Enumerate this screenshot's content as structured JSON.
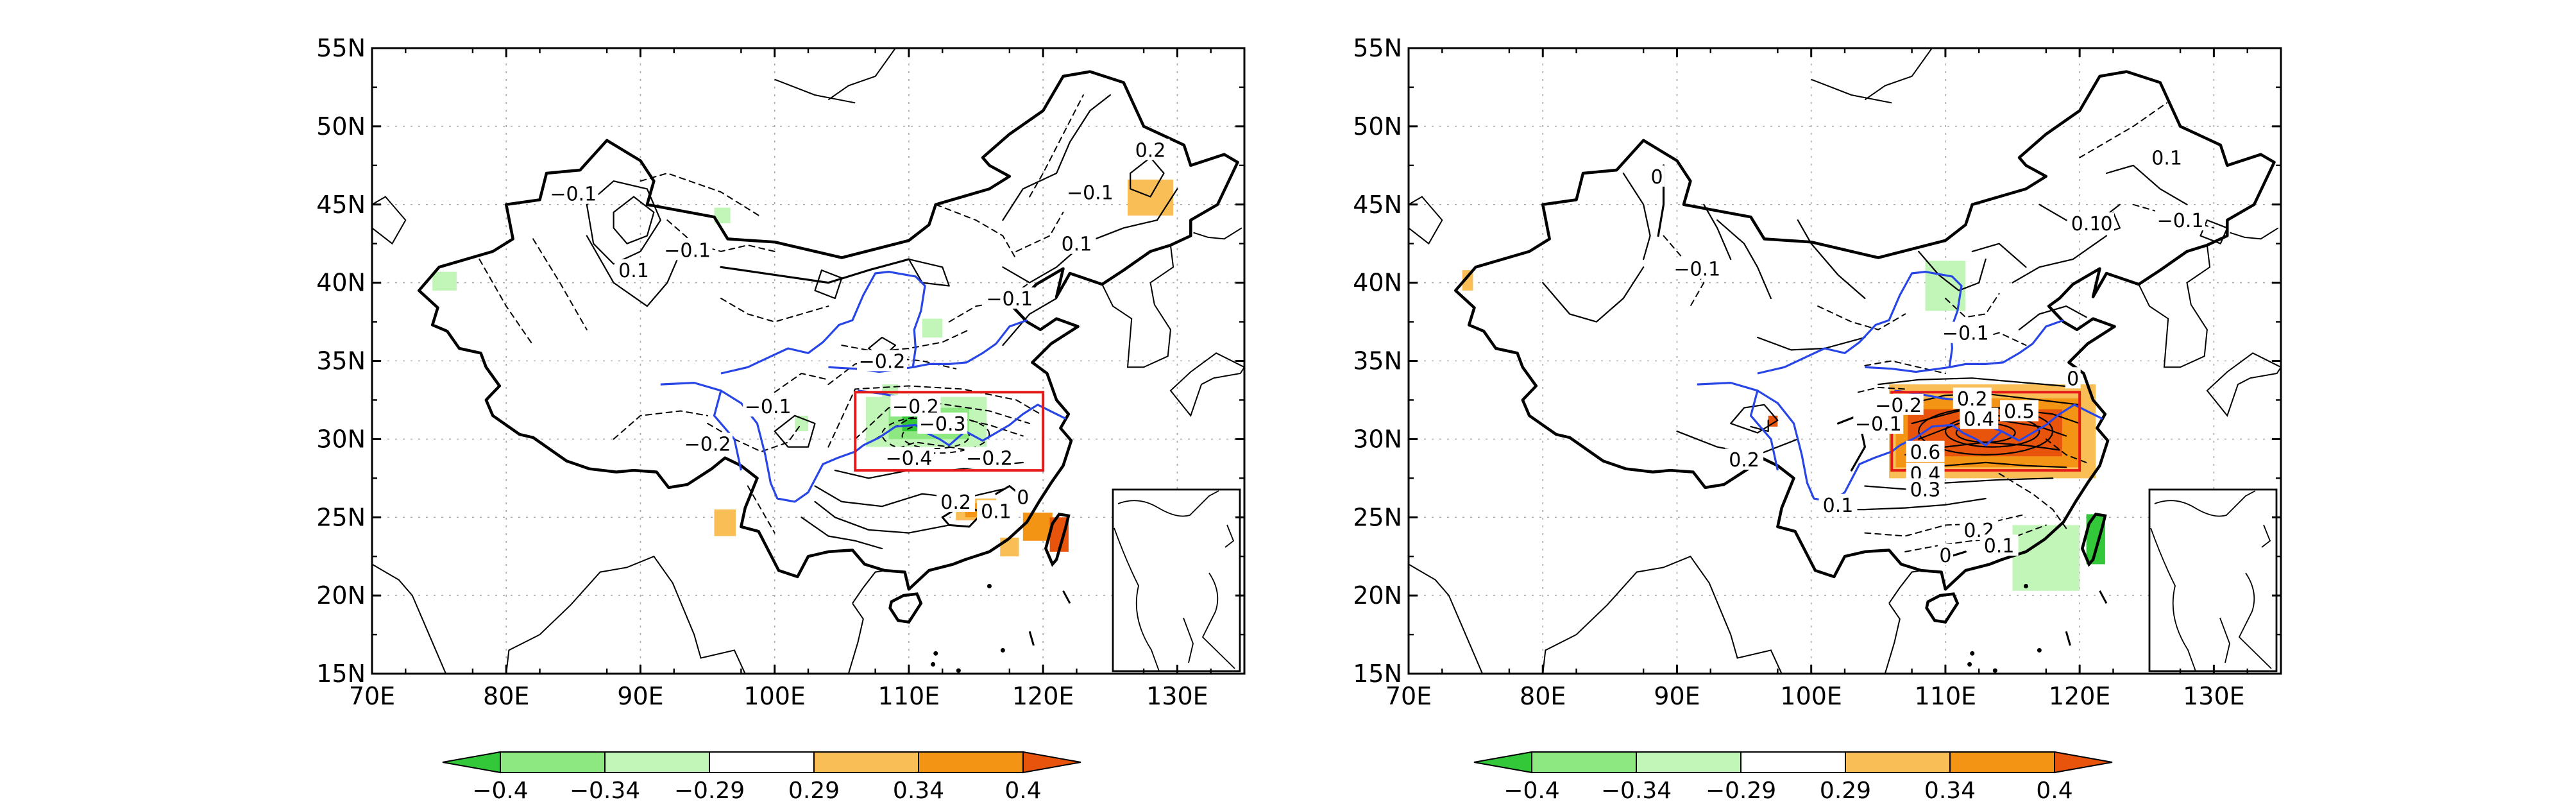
{
  "maps": [
    {
      "id": "left",
      "lat_ticks": [
        "15N",
        "20N",
        "25N",
        "30N",
        "35N",
        "40N",
        "45N",
        "50N",
        "55N"
      ],
      "lon_ticks": [
        "70E",
        "80E",
        "90E",
        "100E",
        "110E",
        "120E",
        "130E"
      ],
      "extent": {
        "lon": [
          70,
          135
        ],
        "lat": [
          15,
          55
        ]
      },
      "box": {
        "lon": [
          106,
          120
        ],
        "lat": [
          28,
          33
        ]
      },
      "contour_labels": [
        {
          "text": "-0.1",
          "lon": 85,
          "lat": 45.7
        },
        {
          "text": "-0.1",
          "lon": 93.5,
          "lat": 42.1
        },
        {
          "text": "0.1",
          "lon": 89.5,
          "lat": 40.8
        },
        {
          "text": "-0.1",
          "lon": 117.5,
          "lat": 39.0
        },
        {
          "text": "-0.1",
          "lon": 123.5,
          "lat": 45.8
        },
        {
          "text": "0.2",
          "lon": 128,
          "lat": 48.5
        },
        {
          "text": "0.1",
          "lon": 122.5,
          "lat": 42.5
        },
        {
          "text": "-0.2",
          "lon": 108,
          "lat": 35.0
        },
        {
          "text": "-0.1",
          "lon": 99.5,
          "lat": 32.1
        },
        {
          "text": "-0.2",
          "lon": 95,
          "lat": 29.7
        },
        {
          "text": "-0.2",
          "lon": 110.5,
          "lat": 32.1
        },
        {
          "text": "-0.3",
          "lon": 112.5,
          "lat": 31.0
        },
        {
          "text": "-0.4",
          "lon": 110,
          "lat": 28.8
        },
        {
          "text": "-0.2",
          "lon": 116,
          "lat": 28.8
        },
        {
          "text": "0.2",
          "lon": 113.5,
          "lat": 26.0
        },
        {
          "text": "0.1",
          "lon": 116.5,
          "lat": 25.4
        },
        {
          "text": "0",
          "lon": 118.5,
          "lat": 26.3
        }
      ],
      "shades": [
        {
          "level": "neg1",
          "lon": 95.5,
          "lat": 43.8,
          "w": 1.2,
          "h": 1.0
        },
        {
          "level": "neg1",
          "lon": 74.5,
          "lat": 39.5,
          "w": 1.8,
          "h": 1.2
        },
        {
          "level": "neg1",
          "lon": 101.5,
          "lat": 30.5,
          "w": 1.0,
          "h": 1.0
        },
        {
          "level": "neg1",
          "lon": 111,
          "lat": 36.5,
          "w": 1.5,
          "h": 1.2
        },
        {
          "level": "neg1",
          "lon": 106.8,
          "lat": 29.5,
          "w": 9,
          "h": 3.2
        },
        {
          "level": "neg2",
          "lon": 108.5,
          "lat": 30.0,
          "w": 6,
          "h": 2.0
        },
        {
          "level": "neg3",
          "lon": 109.5,
          "lat": 30.5,
          "w": 3,
          "h": 1.0
        },
        {
          "level": "neg1",
          "lon": 108,
          "lat": 32.2,
          "w": 1.2,
          "h": 1.3
        },
        {
          "level": "pos2",
          "lon": 126.8,
          "lat": 44.6,
          "w": 2.5,
          "h": 1.5
        },
        {
          "level": "pos1",
          "lon": 126.3,
          "lat": 44.3,
          "w": 3.4,
          "h": 2.3
        },
        {
          "level": "pos1",
          "lon": 95.5,
          "lat": 23.8,
          "w": 1.6,
          "h": 1.7
        },
        {
          "level": "pos1",
          "lon": 113.5,
          "lat": 24.8,
          "w": 3.0,
          "h": 1.4
        },
        {
          "level": "pos2",
          "lon": 114.2,
          "lat": 25.0,
          "w": 1.5,
          "h": 0.9
        },
        {
          "level": "pos1",
          "lon": 116.8,
          "lat": 22.5,
          "w": 1.4,
          "h": 1.2
        },
        {
          "level": "pos2",
          "lon": 118.5,
          "lat": 23.5,
          "w": 2.2,
          "h": 1.8
        },
        {
          "level": "pos3",
          "lon": 120.5,
          "lat": 22.8,
          "w": 1.4,
          "h": 2.2
        }
      ]
    },
    {
      "id": "right",
      "lat_ticks": [
        "15N",
        "20N",
        "25N",
        "30N",
        "35N",
        "40N",
        "45N",
        "50N",
        "55N"
      ],
      "lon_ticks": [
        "70E",
        "80E",
        "90E",
        "100E",
        "110E",
        "120E",
        "130E"
      ],
      "extent": {
        "lon": [
          70,
          135
        ],
        "lat": [
          15,
          55
        ]
      },
      "box": {
        "lon": [
          106,
          120
        ],
        "lat": [
          28,
          33
        ]
      },
      "contour_labels": [
        {
          "text": "0",
          "lon": 88.5,
          "lat": 46.8
        },
        {
          "text": "0.1",
          "lon": 126.5,
          "lat": 48.0
        },
        {
          "text": "0.1",
          "lon": 120.5,
          "lat": 43.8
        },
        {
          "text": "0",
          "lon": 122,
          "lat": 43.8
        },
        {
          "text": "-0.1",
          "lon": 127.5,
          "lat": 44.0
        },
        {
          "text": "-0.1",
          "lon": 91.5,
          "lat": 40.9
        },
        {
          "text": "-0.1",
          "lon": 111.5,
          "lat": 36.8
        },
        {
          "text": "-0.2",
          "lon": 106.5,
          "lat": 32.2
        },
        {
          "text": "-0.1",
          "lon": 105,
          "lat": 31.0
        },
        {
          "text": "0.2",
          "lon": 112,
          "lat": 32.6
        },
        {
          "text": "0.4",
          "lon": 112.5,
          "lat": 31.3
        },
        {
          "text": "0.5",
          "lon": 115.5,
          "lat": 31.8
        },
        {
          "text": "0.6",
          "lon": 108.5,
          "lat": 29.2
        },
        {
          "text": "0.4",
          "lon": 108.5,
          "lat": 27.8
        },
        {
          "text": "0.3",
          "lon": 108.5,
          "lat": 26.8
        },
        {
          "text": "0.2",
          "lon": 95,
          "lat": 28.7
        },
        {
          "text": "0.1",
          "lon": 102,
          "lat": 25.8
        },
        {
          "text": "0.2",
          "lon": 112.5,
          "lat": 24.2
        },
        {
          "text": "0.1",
          "lon": 114,
          "lat": 23.2
        },
        {
          "text": "0",
          "lon": 110,
          "lat": 22.6
        },
        {
          "text": "0",
          "lon": 119.5,
          "lat": 33.9
        }
      ],
      "shades": [
        {
          "level": "pos1",
          "lon": 74,
          "lat": 39.5,
          "w": 0.8,
          "h": 1.3
        },
        {
          "level": "pos3",
          "lon": 96.8,
          "lat": 30.8,
          "w": 0.7,
          "h": 0.7
        },
        {
          "level": "neg1",
          "lon": 108.5,
          "lat": 38.2,
          "w": 3.0,
          "h": 3.2
        },
        {
          "level": "neg1",
          "lon": 115,
          "lat": 20.3,
          "w": 5,
          "h": 4.2
        },
        {
          "level": "neg3",
          "lon": 120.5,
          "lat": 22.0,
          "w": 1.4,
          "h": 3.2
        },
        {
          "level": "pos1",
          "lon": 105.8,
          "lat": 27.5,
          "w": 15.4,
          "h": 6.0
        },
        {
          "level": "pos2",
          "lon": 106.3,
          "lat": 28.2,
          "w": 13.8,
          "h": 4.4
        },
        {
          "level": "pos3",
          "lon": 107.2,
          "lat": 28.9,
          "w": 11.5,
          "h": 3.0
        }
      ]
    }
  ],
  "colorbars": [
    {
      "id": "cb-left",
      "labels": [
        "-0.4",
        "-0.34",
        "-0.29",
        "0.29",
        "0.34",
        "0.4"
      ]
    },
    {
      "id": "cb-right",
      "labels": [
        "-0.4",
        "-0.34",
        "-0.29",
        "0.29",
        "0.34",
        "0.4"
      ]
    }
  ],
  "colors": {
    "neg3": "#33c83a",
    "neg2": "#8ee882",
    "neg1": "#c2f5b8",
    "mid": "#ffffff",
    "pos1": "#f9be55",
    "pos2": "#f39414",
    "pos3": "#e9540d",
    "river": "#2845e6",
    "box": "#e61919"
  }
}
